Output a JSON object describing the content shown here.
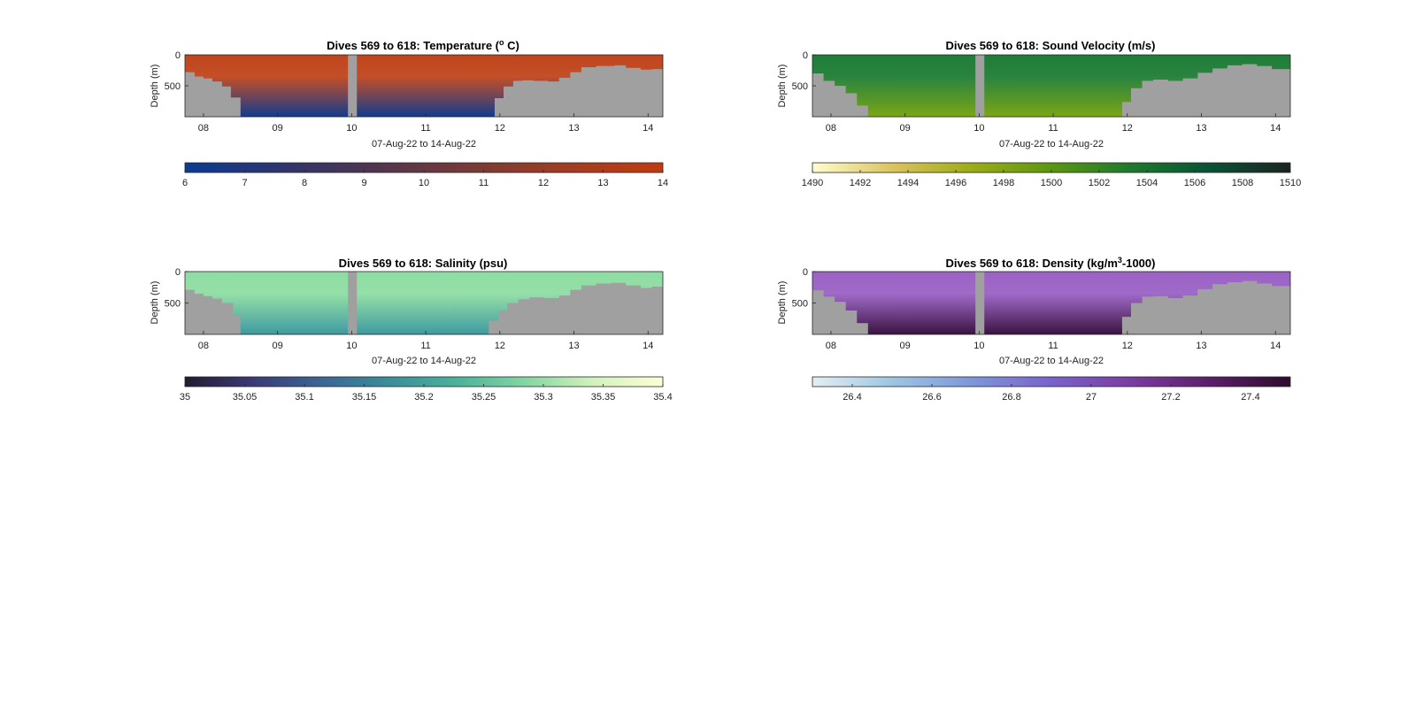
{
  "figure": {
    "background": "#ffffff"
  },
  "chart_data": [
    {
      "type": "heatmap",
      "title": "Dives 569 to 618: Temperature (",
      "title_sup": "o",
      "title_end": " C)",
      "xlabel": "07-Aug-22 to 14-Aug-22",
      "ylabel": "Depth (m)",
      "x_range_days": [
        7.75,
        14.2
      ],
      "xticks": [
        8,
        9,
        10,
        11,
        12,
        13,
        14
      ],
      "xtick_labels": [
        "08",
        "09",
        "10",
        "11",
        "12",
        "13",
        "14"
      ],
      "ylim": [
        1000,
        0
      ],
      "yticks": [
        0,
        500
      ],
      "ytick_labels": [
        "0",
        "500"
      ],
      "data_gap_days": [
        9.95,
        10.07
      ],
      "bottom_profile": [
        [
          7.75,
          280
        ],
        [
          7.88,
          350
        ],
        [
          8.0,
          380
        ],
        [
          8.12,
          430
        ],
        [
          8.25,
          510
        ],
        [
          8.37,
          690
        ],
        [
          8.5,
          1000
        ],
        [
          11.8,
          1000
        ],
        [
          11.93,
          700
        ],
        [
          12.05,
          510
        ],
        [
          12.18,
          420
        ],
        [
          12.3,
          410
        ],
        [
          12.45,
          420
        ],
        [
          12.65,
          430
        ],
        [
          12.8,
          370
        ],
        [
          12.95,
          280
        ],
        [
          13.1,
          200
        ],
        [
          13.3,
          180
        ],
        [
          13.55,
          170
        ],
        [
          13.7,
          210
        ],
        [
          13.9,
          240
        ],
        [
          14.05,
          230
        ],
        [
          14.2,
          230
        ]
      ],
      "surface_color": "#c0451c",
      "deep_color": "#113c8e",
      "bathymetry_color": "#a0a0a0",
      "colorbar": {
        "min": 6,
        "max": 14,
        "ticks": [
          6,
          7,
          8,
          9,
          10,
          11,
          12,
          13,
          14
        ],
        "tick_labels": [
          "6",
          "7",
          "8",
          "9",
          "10",
          "11",
          "12",
          "13",
          "14"
        ],
        "colors": [
          "#0b3b92",
          "#2e3570",
          "#51354f",
          "#7a3a36",
          "#a23d22",
          "#c23b10"
        ]
      }
    },
    {
      "type": "heatmap",
      "title": "Dives 569 to 618: Sound Velocity (m/s)",
      "title_sup": "",
      "title_end": "",
      "xlabel": "07-Aug-22 to 14-Aug-22",
      "ylabel": "Depth (m)",
      "x_range_days": [
        7.75,
        14.2
      ],
      "xticks": [
        8,
        9,
        10,
        11,
        12,
        13,
        14
      ],
      "xtick_labels": [
        "08",
        "09",
        "10",
        "11",
        "12",
        "13",
        "14"
      ],
      "ylim": [
        1000,
        0
      ],
      "yticks": [
        0,
        500
      ],
      "ytick_labels": [
        "0",
        "500"
      ],
      "data_gap_days": [
        9.95,
        10.07
      ],
      "bottom_profile": [
        [
          7.75,
          300
        ],
        [
          7.9,
          420
        ],
        [
          8.05,
          500
        ],
        [
          8.2,
          620
        ],
        [
          8.35,
          820
        ],
        [
          8.5,
          1000
        ],
        [
          11.8,
          1000
        ],
        [
          11.93,
          760
        ],
        [
          12.05,
          540
        ],
        [
          12.2,
          420
        ],
        [
          12.35,
          400
        ],
        [
          12.55,
          420
        ],
        [
          12.75,
          380
        ],
        [
          12.95,
          290
        ],
        [
          13.15,
          220
        ],
        [
          13.35,
          170
        ],
        [
          13.55,
          150
        ],
        [
          13.75,
          180
        ],
        [
          13.95,
          230
        ],
        [
          14.2,
          220
        ]
      ],
      "surface_color": "#1e7d36",
      "deep_color": "#7ba613",
      "bathymetry_color": "#a0a0a0",
      "colorbar": {
        "min": 1490,
        "max": 1510,
        "ticks": [
          1490,
          1492,
          1494,
          1496,
          1498,
          1500,
          1502,
          1504,
          1506,
          1508,
          1510
        ],
        "tick_labels": [
          "1490",
          "1492",
          "1494",
          "1496",
          "1498",
          "1500",
          "1502",
          "1504",
          "1506",
          "1508",
          "1510"
        ],
        "colors": [
          "#fefdce",
          "#dcc35f",
          "#9cac16",
          "#5b9711",
          "#1c7a2e",
          "#0a5137",
          "#1c231f"
        ]
      }
    },
    {
      "type": "heatmap",
      "title": "Dives 569 to 618: Salinity (psu)",
      "title_sup": "",
      "title_end": "",
      "xlabel": "07-Aug-22 to 14-Aug-22",
      "ylabel": "Depth (m)",
      "x_range_days": [
        7.75,
        14.2
      ],
      "xticks": [
        8,
        9,
        10,
        11,
        12,
        13,
        14
      ],
      "xtick_labels": [
        "08",
        "09",
        "10",
        "11",
        "12",
        "13",
        "14"
      ],
      "ylim": [
        1000,
        0
      ],
      "yticks": [
        0,
        500
      ],
      "ytick_labels": [
        "0",
        "500"
      ],
      "data_gap_days": [
        9.95,
        10.07
      ],
      "bottom_profile": [
        [
          7.75,
          290
        ],
        [
          7.88,
          350
        ],
        [
          8.0,
          390
        ],
        [
          8.12,
          430
        ],
        [
          8.25,
          500
        ],
        [
          8.4,
          700
        ],
        [
          8.5,
          1000
        ],
        [
          11.75,
          1000
        ],
        [
          11.85,
          780
        ],
        [
          11.98,
          620
        ],
        [
          12.1,
          500
        ],
        [
          12.25,
          440
        ],
        [
          12.4,
          410
        ],
        [
          12.6,
          420
        ],
        [
          12.8,
          380
        ],
        [
          12.95,
          290
        ],
        [
          13.1,
          220
        ],
        [
          13.3,
          190
        ],
        [
          13.5,
          180
        ],
        [
          13.7,
          220
        ],
        [
          13.9,
          260
        ],
        [
          14.05,
          240
        ],
        [
          14.2,
          230
        ]
      ],
      "surface_color": "#8fdda3",
      "deep_color": "#3e9aa0",
      "bathymetry_color": "#a0a0a0",
      "colorbar": {
        "min": 35,
        "max": 35.4,
        "ticks": [
          35,
          35.05,
          35.1,
          35.15,
          35.2,
          35.25,
          35.3,
          35.35,
          35.4
        ],
        "tick_labels": [
          "35",
          "35.05",
          "35.1",
          "35.15",
          "35.2",
          "35.25",
          "35.3",
          "35.35",
          "35.4"
        ],
        "colors": [
          "#231b30",
          "#3b3a78",
          "#3a6695",
          "#3a8e9c",
          "#4bb39a",
          "#85d6a2",
          "#d3f2bd",
          "#fefed6"
        ]
      }
    },
    {
      "type": "heatmap",
      "title": "Dives 569 to 618: Density (kg/m",
      "title_sup": "3",
      "title_end": "-1000)",
      "xlabel": "07-Aug-22 to 14-Aug-22",
      "ylabel": "Depth (m)",
      "x_range_days": [
        7.75,
        14.2
      ],
      "xticks": [
        8,
        9,
        10,
        11,
        12,
        13,
        14
      ],
      "xtick_labels": [
        "08",
        "09",
        "10",
        "11",
        "12",
        "13",
        "14"
      ],
      "ylim": [
        1000,
        0
      ],
      "yticks": [
        0,
        500
      ],
      "ytick_labels": [
        "0",
        "500"
      ],
      "data_gap_days": [
        9.95,
        10.07
      ],
      "bottom_profile": [
        [
          7.75,
          300
        ],
        [
          7.9,
          400
        ],
        [
          8.05,
          480
        ],
        [
          8.2,
          620
        ],
        [
          8.35,
          820
        ],
        [
          8.5,
          1000
        ],
        [
          11.8,
          1000
        ],
        [
          11.93,
          720
        ],
        [
          12.05,
          500
        ],
        [
          12.2,
          400
        ],
        [
          12.35,
          390
        ],
        [
          12.55,
          420
        ],
        [
          12.75,
          380
        ],
        [
          12.95,
          280
        ],
        [
          13.15,
          200
        ],
        [
          13.35,
          170
        ],
        [
          13.55,
          150
        ],
        [
          13.75,
          190
        ],
        [
          13.95,
          230
        ],
        [
          14.2,
          220
        ]
      ],
      "surface_color": "#9a62c5",
      "deep_color": "#3a1340",
      "bathymetry_color": "#a0a0a0",
      "colorbar": {
        "min": 26.3,
        "max": 27.5,
        "ticks": [
          26.4,
          26.6,
          26.8,
          27,
          27.2,
          27.4
        ],
        "tick_labels": [
          "26.4",
          "26.6",
          "26.8",
          "27",
          "27.2",
          "27.4"
        ],
        "colors": [
          "#e4eef2",
          "#9cc6e3",
          "#7e97d8",
          "#7a62cd",
          "#7b3ca1",
          "#5c1e6a",
          "#2d0b2b"
        ]
      }
    }
  ]
}
